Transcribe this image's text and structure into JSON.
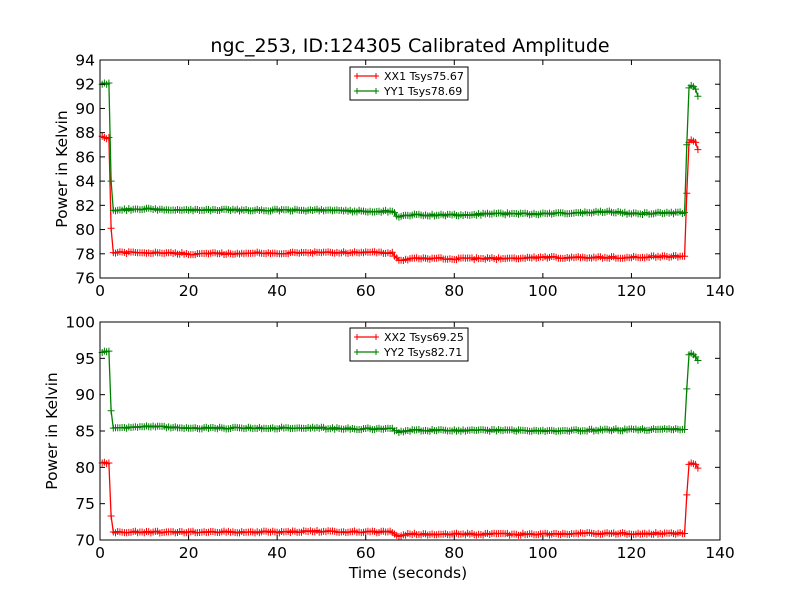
{
  "figure": {
    "title": "ngc_253, ID:124305 Calibrated Amplitude"
  },
  "chart_data": [
    {
      "type": "line",
      "marker": "+",
      "xlabel": "",
      "ylabel": "Power in Kelvin",
      "xlim": [
        0,
        140
      ],
      "ylim": [
        76,
        94
      ],
      "xticks": [
        "0",
        "20",
        "40",
        "60",
        "80",
        "100",
        "120",
        "140"
      ],
      "yticks": [
        "76",
        "78",
        "80",
        "82",
        "84",
        "86",
        "88",
        "90",
        "92",
        "94"
      ],
      "grid": false,
      "legend_position": "top-center",
      "series": [
        {
          "name": "XX1 Tsys75.67",
          "color": "#ff0000",
          "points": [
            [
              0.5,
              87.7
            ],
            [
              1.0,
              87.6
            ],
            [
              1.5,
              87.5
            ],
            [
              2.0,
              87.6
            ],
            [
              2.5,
              80.1
            ],
            [
              3.0,
              78.1
            ],
            [
              10,
              78.1
            ],
            [
              20,
              78.0
            ],
            [
              30,
              78.0
            ],
            [
              35,
              78.1
            ],
            [
              40,
              78.0
            ],
            [
              45,
              78.1
            ],
            [
              50,
              78.1
            ],
            [
              60,
              78.1
            ],
            [
              66,
              78.1
            ],
            [
              67.5,
              77.4
            ],
            [
              70,
              77.6
            ],
            [
              80,
              77.6
            ],
            [
              90,
              77.6
            ],
            [
              100,
              77.7
            ],
            [
              110,
              77.7
            ],
            [
              120,
              77.7
            ],
            [
              131,
              77.8
            ],
            [
              132,
              77.8
            ],
            [
              132.5,
              83.0
            ],
            [
              133.0,
              87.2
            ],
            [
              133.5,
              87.4
            ],
            [
              134.0,
              87.3
            ],
            [
              134.5,
              87.2
            ],
            [
              135.0,
              86.6
            ]
          ]
        },
        {
          "name": "YY1 Tsys78.69",
          "color": "#008000",
          "points": [
            [
              0.5,
              92.0
            ],
            [
              1.0,
              92.1
            ],
            [
              1.5,
              92.0
            ],
            [
              2.0,
              92.1
            ],
            [
              2.5,
              84.0
            ],
            [
              3.0,
              81.6
            ],
            [
              10,
              81.7
            ],
            [
              20,
              81.6
            ],
            [
              30,
              81.6
            ],
            [
              40,
              81.6
            ],
            [
              50,
              81.6
            ],
            [
              60,
              81.5
            ],
            [
              66,
              81.5
            ],
            [
              67.5,
              81.0
            ],
            [
              70,
              81.2
            ],
            [
              80,
              81.2
            ],
            [
              90,
              81.3
            ],
            [
              100,
              81.3
            ],
            [
              110,
              81.4
            ],
            [
              115,
              81.5
            ],
            [
              120,
              81.3
            ],
            [
              131,
              81.4
            ],
            [
              132,
              81.4
            ],
            [
              132.5,
              87.0
            ],
            [
              133.0,
              91.7
            ],
            [
              133.5,
              91.9
            ],
            [
              134.0,
              91.8
            ],
            [
              134.5,
              91.6
            ],
            [
              135.0,
              91.0
            ]
          ]
        }
      ]
    },
    {
      "type": "line",
      "marker": "+",
      "xlabel": "Time (seconds)",
      "ylabel": "Power in Kelvin",
      "xlim": [
        0,
        140
      ],
      "ylim": [
        70,
        100
      ],
      "xticks": [
        "0",
        "20",
        "40",
        "60",
        "80",
        "100",
        "120",
        "140"
      ],
      "yticks": [
        "70",
        "75",
        "80",
        "85",
        "90",
        "95",
        "100"
      ],
      "grid": false,
      "legend_position": "top-center",
      "series": [
        {
          "name": "XX2 Tsys69.25",
          "color": "#ff0000",
          "points": [
            [
              0.5,
              80.6
            ],
            [
              1.0,
              80.7
            ],
            [
              1.5,
              80.5
            ],
            [
              2.0,
              80.6
            ],
            [
              2.5,
              73.3
            ],
            [
              3.0,
              71.1
            ],
            [
              10,
              71.1
            ],
            [
              20,
              71.1
            ],
            [
              30,
              71.1
            ],
            [
              40,
              71.1
            ],
            [
              48,
              71.2
            ],
            [
              60,
              71.1
            ],
            [
              66,
              71.1
            ],
            [
              67.5,
              70.6
            ],
            [
              70,
              70.8
            ],
            [
              80,
              70.8
            ],
            [
              90,
              70.8
            ],
            [
              100,
              70.8
            ],
            [
              110,
              70.9
            ],
            [
              120,
              70.9
            ],
            [
              131,
              70.9
            ],
            [
              132,
              70.9
            ],
            [
              132.5,
              76.2
            ],
            [
              133.0,
              80.4
            ],
            [
              133.5,
              80.6
            ],
            [
              134.0,
              80.5
            ],
            [
              134.5,
              80.4
            ],
            [
              135.0,
              79.9
            ]
          ]
        },
        {
          "name": "YY2 Tsys82.71",
          "color": "#008000",
          "points": [
            [
              0.5,
              95.8
            ],
            [
              1.0,
              96.0
            ],
            [
              1.5,
              95.9
            ],
            [
              2.0,
              96.0
            ],
            [
              2.5,
              87.8
            ],
            [
              3.0,
              85.4
            ],
            [
              10,
              85.6
            ],
            [
              20,
              85.4
            ],
            [
              30,
              85.4
            ],
            [
              40,
              85.4
            ],
            [
              50,
              85.4
            ],
            [
              60,
              85.3
            ],
            [
              66,
              85.3
            ],
            [
              67.5,
              84.8
            ],
            [
              70,
              85.1
            ],
            [
              80,
              85.1
            ],
            [
              90,
              85.1
            ],
            [
              100,
              85.0
            ],
            [
              110,
              85.1
            ],
            [
              120,
              85.2
            ],
            [
              131,
              85.2
            ],
            [
              132,
              85.2
            ],
            [
              132.5,
              90.8
            ],
            [
              133.0,
              95.5
            ],
            [
              133.5,
              95.7
            ],
            [
              134.0,
              95.5
            ],
            [
              134.5,
              95.2
            ],
            [
              135.0,
              94.7
            ]
          ]
        }
      ]
    }
  ]
}
